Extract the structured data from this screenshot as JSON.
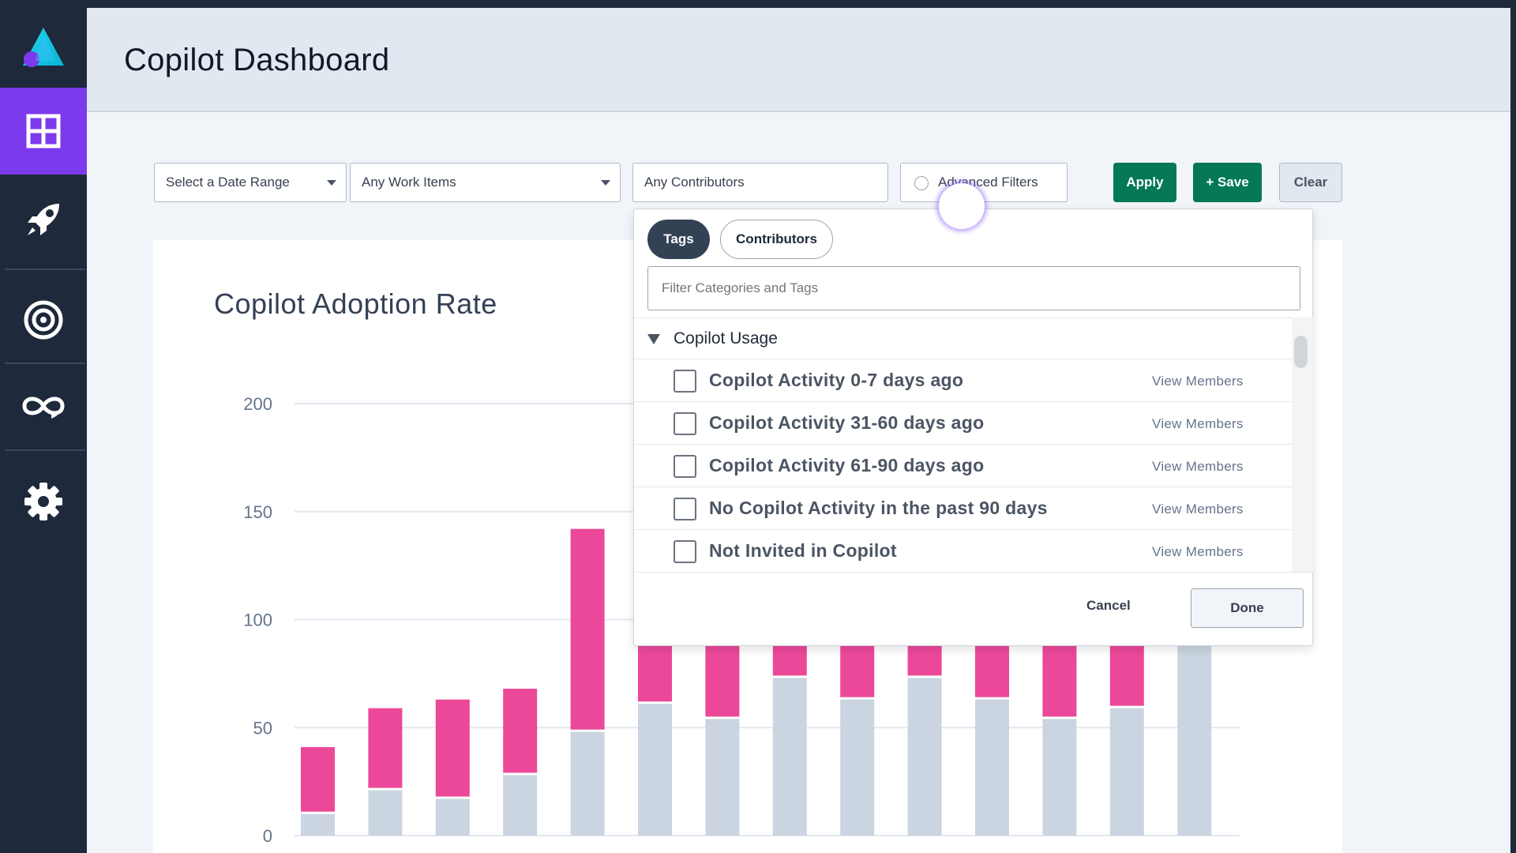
{
  "app": {
    "title": "Copilot Dashboard"
  },
  "sidebar": {
    "items": [
      {
        "name": "dashboard",
        "icon": "grid-icon",
        "active": true
      },
      {
        "name": "deploy",
        "icon": "rocket-icon",
        "active": false
      },
      {
        "name": "goals",
        "icon": "target-icon",
        "active": false
      },
      {
        "name": "loop",
        "icon": "infinity-loop-icon",
        "active": false
      },
      {
        "name": "settings",
        "icon": "gear-icon",
        "active": false
      }
    ],
    "logo_icon": "triangle-logo-icon"
  },
  "filters": {
    "date_range": "Select a Date Range",
    "work_items": "Any Work Items",
    "contributors": "Any Contributors",
    "advanced": "Advanced Filters",
    "apply": "Apply",
    "save": "+ Save",
    "clear": "Clear"
  },
  "dropdown": {
    "tabs": [
      {
        "label": "Tags",
        "active": true
      },
      {
        "label": "Contributors",
        "active": false
      }
    ],
    "filter_placeholder": "Filter Categories and Tags",
    "group": "Copilot Usage",
    "items": [
      {
        "label": "Copilot Activity 0-7 days ago",
        "action": "View Members",
        "checked": false
      },
      {
        "label": "Copilot Activity 31-60 days ago",
        "action": "View Members",
        "checked": false
      },
      {
        "label": "Copilot Activity 61-90 days ago",
        "action": "View Members",
        "checked": false
      },
      {
        "label": "No Copilot Activity in the past 90 days",
        "action": "View Members",
        "checked": false
      },
      {
        "label": "Not Invited in Copilot",
        "action": "View Members",
        "checked": false
      }
    ],
    "cancel": "Cancel",
    "done": "Done"
  },
  "colors": {
    "accent": "#7c3aed",
    "sidebar_bg": "#1e293b",
    "primary_green": "#047857",
    "series_pink": "#ec4899",
    "series_gray": "#cbd5e1"
  },
  "chart_data": {
    "type": "bar",
    "stacked": true,
    "title": "Copilot Adoption Rate",
    "ylim": [
      0,
      200
    ],
    "yticks": [
      0,
      50,
      100,
      150,
      200
    ],
    "grid": true,
    "series": [
      {
        "color": "#cbd5e1",
        "values": [
          10,
          21,
          17,
          28,
          48,
          61,
          54,
          73,
          63,
          73,
          63,
          54,
          59,
          91
        ]
      },
      {
        "color": "#ec4899",
        "values": [
          31,
          38,
          46,
          40,
          94,
          29,
          34,
          18,
          25,
          18,
          25,
          34,
          30,
          0
        ]
      }
    ],
    "totals": [
      41,
      59,
      63,
      68,
      142,
      90,
      88,
      91,
      88,
      91,
      88,
      88,
      89,
      91
    ]
  }
}
